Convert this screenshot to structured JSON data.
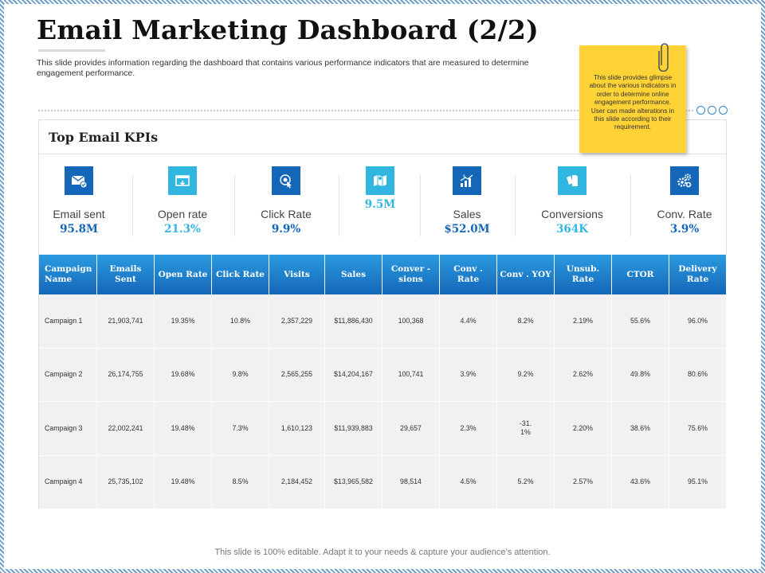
{
  "title": "Email Marketing Dashboard (2/2)",
  "subtitle": "This slide provides information regarding the dashboard that contains various performance indicators that are measured to determine engagement performance.",
  "sticky_note": "This slide provides glimpse about the various indicators in order to determine online engagement performance. User can made alterations in this slide according to their requirement.",
  "panel_title": "Top Email KPIs",
  "kpis": [
    {
      "label": "Email sent",
      "value": "95.8M",
      "icon": "envelope-icon",
      "accent": "#1466b8"
    },
    {
      "label": "Open rate",
      "value": "21.3%",
      "icon": "open-mail-icon",
      "accent": "#31b6e0"
    },
    {
      "label": "Click Rate",
      "value": "9.9%",
      "icon": "click-icon",
      "accent": "#1466b8"
    },
    {
      "label": "",
      "value": "9.5M",
      "icon": "map-icon",
      "accent": "#31b6e0"
    },
    {
      "label": "Sales",
      "value": "$52.0M",
      "icon": "bar-chart-icon",
      "accent": "#1466b8"
    },
    {
      "label": "Conversions",
      "value": "364K",
      "icon": "documents-icon",
      "accent": "#31b6e0"
    },
    {
      "label": "Conv. Rate",
      "value": "3.9%",
      "icon": "gears-icon",
      "accent": "#1466b8"
    }
  ],
  "table": {
    "headers": [
      "Campaign Name",
      "Emails Sent",
      "Open Rate",
      "Click Rate",
      "Visits",
      "Sales",
      "Conver - sions",
      "Conv . Rate",
      "Conv . YOY",
      "Unsub. Rate",
      "CTOR",
      "Delivery Rate"
    ],
    "rows": [
      [
        "Campaign 1",
        "21,903,741",
        "19.35%",
        "10.8%",
        "2,357,229",
        "$11,886,430",
        "100,368",
        "4.4%",
        "8.2%",
        "2.19%",
        "55.6%",
        "96.0%"
      ],
      [
        "Campaign 2",
        "26,174,755",
        "19.68%",
        "9.8%",
        "2,565,255",
        "$14,204,167",
        "100,741",
        "3.9%",
        "9.2%",
        "2.62%",
        "49.8%",
        "80.6%"
      ],
      [
        "Campaign 3",
        "22,002,241",
        "19.48%",
        "7.3%",
        "1,610,123",
        "$11,939,883",
        "29,657",
        "2.3%",
        "-31. 1%",
        "2.20%",
        "38.6%",
        "75.6%"
      ],
      [
        "Campaign 4",
        "25,735,102",
        "19.48%",
        "8.5%",
        "2,184,452",
        "$13,965,582",
        "98,514",
        "4.5%",
        "5.2%",
        "2.57%",
        "43.6%",
        "95.1%"
      ]
    ]
  },
  "footer": "This slide is 100% editable. Adapt it to your needs & capture your audience’s attention.",
  "colors": {
    "dark_blue": "#1466b8",
    "light_blue": "#31b6e0",
    "sticky": "#ffd236"
  }
}
